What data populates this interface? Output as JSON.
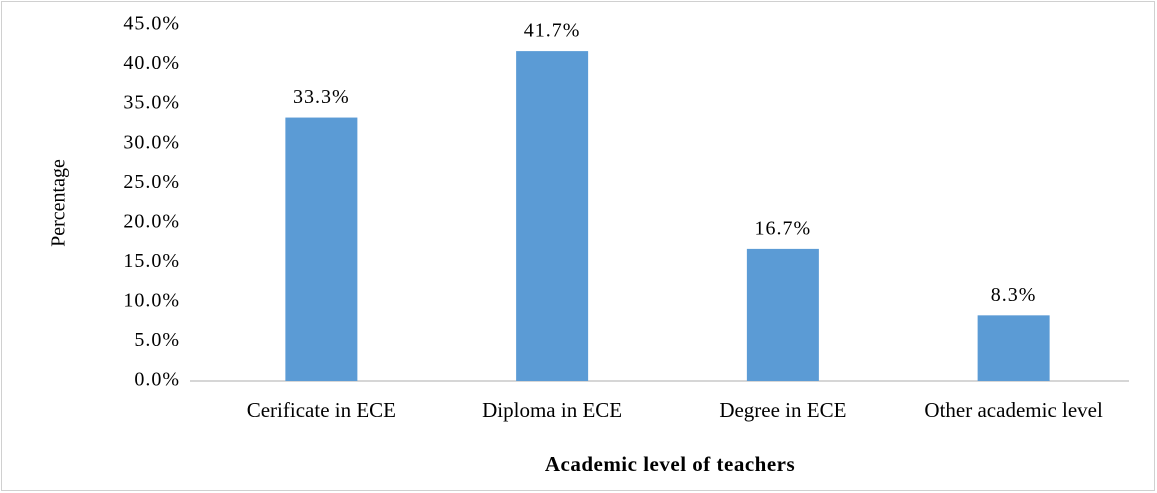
{
  "chart_data": {
    "type": "bar",
    "x_label": "Academic level of teachers",
    "y_label": "Percentage",
    "categories": [
      "Cerificate in ECE",
      "Diploma in ECE",
      "Degree in ECE",
      "Other academic level"
    ],
    "values": [
      33.3,
      41.7,
      16.7,
      8.3
    ],
    "value_labels": [
      "33.3%",
      "41.7%",
      "16.7%",
      "8.3%"
    ],
    "color": "#5b9bd5",
    "ylim": [
      0,
      45
    ],
    "yticks": [
      {
        "value": 0,
        "label": "0.0%"
      },
      {
        "value": 5,
        "label": "5.0%"
      },
      {
        "value": 10,
        "label": "10.0%"
      },
      {
        "value": 15,
        "label": "15.0%"
      },
      {
        "value": 20,
        "label": "20.0%"
      },
      {
        "value": 25,
        "label": "25.0%"
      },
      {
        "value": 30,
        "label": "30.0%"
      },
      {
        "value": 35,
        "label": "35.0%"
      },
      {
        "value": 40,
        "label": "40.0%"
      },
      {
        "value": 45,
        "label": "45.0%"
      }
    ],
    "grid": false
  }
}
